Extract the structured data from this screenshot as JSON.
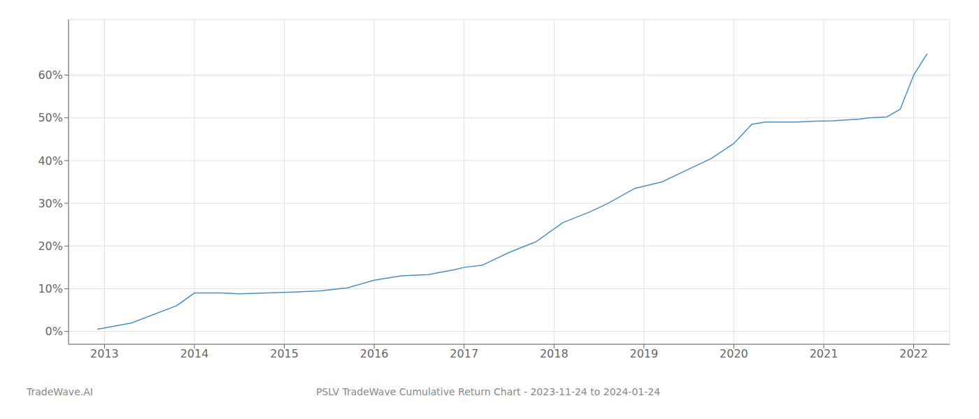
{
  "chart_data": {
    "type": "line",
    "title": "PSLV TradeWave Cumulative Return Chart - 2023-11-24 to 2024-01-24",
    "annotations": [
      "TradeWave.AI"
    ],
    "color": "#4a90c4",
    "grid": true,
    "x": [
      2012.92,
      2013.3,
      2013.8,
      2014.0,
      2014.3,
      2014.5,
      2014.8,
      2015.1,
      2015.4,
      2015.7,
      2016.0,
      2016.3,
      2016.6,
      2016.9,
      2017.0,
      2017.2,
      2017.5,
      2017.8,
      2018.1,
      2018.4,
      2018.6,
      2018.9,
      2019.2,
      2019.5,
      2019.75,
      2020.0,
      2020.2,
      2020.35,
      2020.5,
      2020.7,
      2020.9,
      2021.1,
      2021.4,
      2021.5,
      2021.7,
      2021.85,
      2022.0,
      2022.15
    ],
    "values": [
      0.5,
      2.0,
      6.0,
      9.0,
      9.0,
      8.8,
      9.0,
      9.2,
      9.5,
      10.2,
      12.0,
      13.0,
      13.3,
      14.5,
      15.0,
      15.5,
      18.5,
      21.0,
      25.5,
      28.0,
      30.0,
      33.5,
      35.0,
      38.0,
      40.5,
      44.0,
      48.5,
      49.0,
      49.0,
      49.0,
      49.2,
      49.3,
      49.7,
      50.0,
      50.2,
      52.0,
      60.0,
      65.0
    ],
    "xlim": [
      2012.6,
      2022.4
    ],
    "ylim": [
      -3,
      73
    ],
    "xticks": [
      2013,
      2014,
      2015,
      2016,
      2017,
      2018,
      2019,
      2020,
      2021,
      2022
    ],
    "yticks": [
      {
        "value": 0,
        "label": "0%"
      },
      {
        "value": 10,
        "label": "10%"
      },
      {
        "value": 20,
        "label": "20%"
      },
      {
        "value": 30,
        "label": "30%"
      },
      {
        "value": 40,
        "label": "40%"
      },
      {
        "value": 50,
        "label": "50%"
      },
      {
        "value": 60,
        "label": "60%"
      }
    ]
  }
}
